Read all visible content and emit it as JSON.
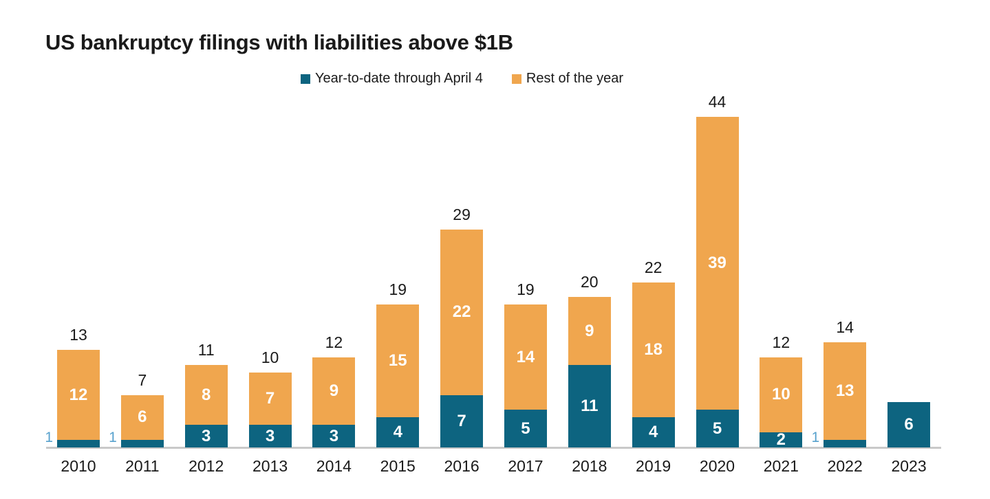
{
  "chart_data": {
    "type": "bar",
    "variant": "stacked-vertical",
    "title": "US bankruptcy filings with liabilities above $1B",
    "categories": [
      "2010",
      "2011",
      "2012",
      "2013",
      "2014",
      "2015",
      "2016",
      "2017",
      "2018",
      "2019",
      "2020",
      "2021",
      "2022",
      "2023"
    ],
    "series": [
      {
        "name": "Year-to-date through April 4",
        "color": "#0d6480",
        "values": [
          1,
          1,
          3,
          3,
          3,
          4,
          7,
          5,
          11,
          4,
          5,
          2,
          1,
          6
        ]
      },
      {
        "name": "Rest of the year",
        "color": "#f0a64e",
        "values": [
          12,
          6,
          8,
          7,
          9,
          15,
          22,
          14,
          9,
          18,
          39,
          10,
          13,
          0
        ]
      }
    ],
    "totals": [
      13,
      7,
      11,
      10,
      12,
      19,
      29,
      19,
      20,
      22,
      44,
      12,
      14,
      null
    ],
    "xlabel": "",
    "ylabel": "",
    "ylim": [
      0,
      44
    ],
    "grid": false,
    "legend_position": "top",
    "colors": {
      "inside_label": "#ffffff",
      "outside_label": "#57a1cd",
      "total_label": "#1a1a1a",
      "axis_line": "#c9c9c9",
      "text": "#1a1a1a",
      "background": "#ffffff"
    }
  }
}
